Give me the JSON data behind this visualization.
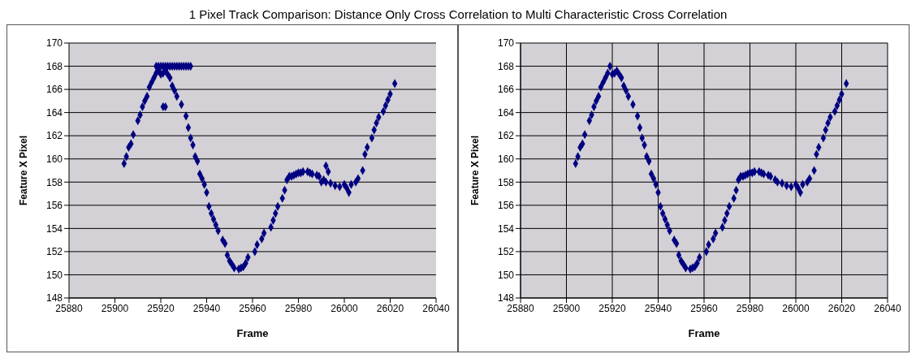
{
  "chart_data": [
    {
      "type": "scatter",
      "title": "1 Pixel Track Comparison: Distance Only Cross Correlation to Multi Characteristic Cross Correlation",
      "xlabel": "Frame",
      "ylabel": "Feature X Pixel",
      "xlim": [
        25880,
        26040
      ],
      "xticks": [
        25880,
        25900,
        25920,
        25940,
        25960,
        25980,
        26000,
        26020,
        26040
      ],
      "ylim": [
        148,
        170
      ],
      "yticks": [
        148,
        150,
        152,
        154,
        156,
        158,
        160,
        162,
        164,
        166,
        168,
        170
      ],
      "grid": "y",
      "marker": "diamond",
      "series": [
        {
          "color": "#000080",
          "x": [
            25904,
            25905,
            25906,
            25907,
            25908,
            25910,
            25911,
            25912,
            25913,
            25914,
            25915,
            25916,
            25917,
            25918,
            25919,
            25920,
            25921,
            25922,
            25923,
            25924,
            25925,
            25926,
            25927,
            25929,
            25931,
            25932,
            25933,
            25934,
            25935,
            25936,
            25937,
            25938,
            25939,
            25940,
            25941,
            25942,
            25943,
            25944,
            25945,
            25947,
            25948,
            25949,
            25950,
            25951,
            25952,
            25954,
            25955,
            25956,
            25957,
            25958,
            25961,
            25962,
            25964,
            25965,
            25968,
            25969,
            25970,
            25971,
            25973,
            25974,
            25975,
            25976,
            25977,
            25978,
            25979,
            25980,
            25981,
            25982,
            25984,
            25985,
            25986,
            25988,
            25989,
            25991,
            25992,
            25994,
            25996,
            25998,
            26000,
            26001,
            26002,
            26003,
            26005,
            26006,
            26008,
            26009,
            26010,
            26012,
            26013,
            26014,
            26015,
            26017,
            26018,
            26019,
            26020,
            26022,
            25918,
            25919,
            25920,
            25921,
            25922,
            25923,
            25924,
            25925,
            25926,
            25927,
            25928,
            25929,
            25930,
            25931,
            25932,
            25933,
            25921,
            25922,
            25990,
            25992,
            25993
          ],
          "values": [
            159.6,
            160.2,
            161.0,
            161.3,
            162.1,
            163.3,
            163.8,
            164.5,
            165.0,
            165.4,
            166.2,
            166.6,
            167.0,
            167.4,
            167.6,
            167.3,
            167.4,
            167.6,
            167.3,
            167.0,
            166.3,
            165.9,
            165.4,
            164.7,
            163.7,
            162.7,
            161.8,
            161.2,
            160.2,
            159.8,
            158.7,
            158.3,
            157.8,
            157.1,
            155.9,
            155.3,
            154.8,
            154.3,
            153.8,
            153.0,
            152.7,
            151.7,
            151.2,
            150.9,
            150.6,
            150.5,
            150.6,
            150.7,
            151.0,
            151.5,
            152.0,
            152.6,
            153.1,
            153.6,
            154.1,
            154.7,
            155.3,
            155.9,
            156.6,
            157.3,
            158.2,
            158.5,
            158.5,
            158.6,
            158.7,
            158.8,
            158.8,
            158.9,
            158.9,
            158.8,
            158.7,
            158.6,
            158.5,
            158.2,
            158.0,
            157.9,
            157.7,
            157.6,
            157.8,
            157.5,
            157.1,
            157.8,
            158.0,
            158.3,
            159.0,
            160.4,
            161.0,
            161.8,
            162.5,
            163.1,
            163.6,
            164.1,
            164.6,
            165.1,
            165.6,
            166.5,
            168,
            168,
            168,
            168,
            168,
            168,
            168,
            168,
            168,
            168,
            168,
            168,
            168,
            168,
            168,
            168,
            164.5,
            164.5,
            158.0,
            159.4,
            158.9
          ]
        }
      ]
    },
    {
      "type": "scatter",
      "xlabel": "Frame",
      "ylabel": "Feature X Pixel",
      "xlim": [
        25880,
        26040
      ],
      "xticks": [
        25880,
        25900,
        25920,
        25940,
        25960,
        25980,
        26000,
        26020,
        26040
      ],
      "ylim": [
        148,
        170
      ],
      "yticks": [
        148,
        150,
        152,
        154,
        156,
        158,
        160,
        162,
        164,
        166,
        168,
        170
      ],
      "grid": true,
      "marker": "diamond",
      "series": [
        {
          "color": "#000080",
          "x": [
            25904,
            25905,
            25906,
            25907,
            25908,
            25910,
            25911,
            25912,
            25913,
            25914,
            25915,
            25916,
            25917,
            25918,
            25919,
            25920,
            25921,
            25922,
            25923,
            25924,
            25925,
            25926,
            25927,
            25929,
            25931,
            25932,
            25933,
            25934,
            25935,
            25936,
            25937,
            25938,
            25939,
            25940,
            25941,
            25942,
            25943,
            25944,
            25945,
            25947,
            25948,
            25949,
            25950,
            25951,
            25952,
            25954,
            25955,
            25956,
            25957,
            25958,
            25961,
            25962,
            25964,
            25965,
            25968,
            25969,
            25970,
            25971,
            25973,
            25974,
            25975,
            25976,
            25977,
            25978,
            25979,
            25980,
            25981,
            25982,
            25984,
            25985,
            25986,
            25988,
            25989,
            25991,
            25992,
            25994,
            25996,
            25998,
            26000,
            26001,
            26002,
            26003,
            26005,
            26006,
            26008,
            26009,
            26010,
            26012,
            26013,
            26014,
            26015,
            26017,
            26018,
            26019,
            26020,
            26022
          ],
          "values": [
            159.6,
            160.2,
            161.0,
            161.3,
            162.1,
            163.3,
            163.8,
            164.5,
            165.0,
            165.4,
            166.2,
            166.6,
            167.0,
            167.4,
            168.0,
            167.3,
            167.4,
            167.6,
            167.3,
            167.0,
            166.3,
            165.9,
            165.4,
            164.7,
            163.7,
            162.7,
            161.8,
            161.2,
            160.2,
            159.8,
            158.7,
            158.3,
            157.8,
            157.1,
            155.9,
            155.3,
            154.8,
            154.3,
            153.8,
            153.0,
            152.7,
            151.7,
            151.2,
            150.9,
            150.6,
            150.5,
            150.6,
            150.7,
            151.0,
            151.5,
            152.0,
            152.6,
            153.1,
            153.6,
            154.1,
            154.7,
            155.3,
            155.9,
            156.6,
            157.3,
            158.2,
            158.5,
            158.5,
            158.6,
            158.7,
            158.8,
            158.8,
            158.9,
            158.9,
            158.8,
            158.7,
            158.6,
            158.5,
            158.2,
            158.0,
            157.9,
            157.7,
            157.6,
            157.8,
            157.5,
            157.1,
            157.8,
            158.0,
            158.3,
            159.0,
            160.4,
            161.0,
            161.8,
            162.5,
            163.1,
            163.6,
            164.1,
            164.6,
            165.1,
            165.6,
            166.5
          ]
        }
      ]
    }
  ]
}
